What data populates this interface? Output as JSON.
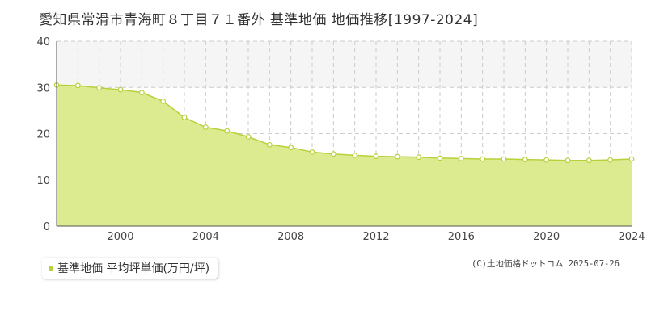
{
  "title": "愛知県常滑市青海町８丁目７１番外 基準地価 地価推移[1997-2024]",
  "legend": {
    "label": "基準地価 平均坪単価(万円/坪)"
  },
  "credit": "(C)土地価格ドットコム 2025-07-26",
  "colors": {
    "fill": "#dcea90",
    "line": "#b5d23a",
    "band": "#f5f5f5",
    "grid": "#cccccc",
    "axis": "#555555"
  },
  "chart_data": {
    "type": "area",
    "title": "",
    "xlabel": "",
    "ylabel": "",
    "xlim": [
      1997,
      2024
    ],
    "ylim": [
      0,
      40
    ],
    "y_ticks": [
      0,
      10,
      20,
      30,
      40
    ],
    "x_ticks": [
      2000,
      2004,
      2008,
      2012,
      2016,
      2020,
      2024
    ],
    "grid": true,
    "legend_position": "bottom-left",
    "series": [
      {
        "name": "基準地価 平均坪単価(万円/坪)",
        "x": [
          1997,
          1998,
          1999,
          2000,
          2001,
          2002,
          2003,
          2004,
          2005,
          2006,
          2007,
          2008,
          2009,
          2010,
          2011,
          2012,
          2013,
          2014,
          2015,
          2016,
          2017,
          2018,
          2019,
          2020,
          2021,
          2022,
          2023,
          2024
        ],
        "values": [
          30.5,
          30.4,
          29.9,
          29.5,
          28.9,
          27.0,
          23.5,
          21.4,
          20.6,
          19.3,
          17.6,
          17.0,
          16.0,
          15.6,
          15.3,
          15.1,
          15.0,
          14.9,
          14.7,
          14.6,
          14.5,
          14.5,
          14.4,
          14.3,
          14.2,
          14.2,
          14.3,
          14.5
        ]
      }
    ]
  }
}
